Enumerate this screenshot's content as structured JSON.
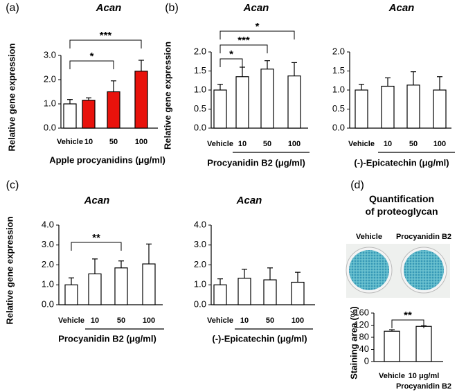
{
  "chart_data": [
    {
      "type": "bar",
      "panel": "(a)",
      "title": "Acan",
      "ylabel": "Relative gene expression",
      "xlabel": "Apple procyanidins (μg/ml)",
      "categories": [
        "Vehicle",
        "10",
        "50",
        "100"
      ],
      "values": [
        1.0,
        1.15,
        1.5,
        2.35
      ],
      "errors": [
        0.18,
        0.1,
        0.45,
        0.45
      ],
      "colors": [
        "#ffffff",
        "#e8120c",
        "#e8120c",
        "#e8120c"
      ],
      "ylim": [
        0,
        3
      ],
      "yticks": [
        {
          "value": 0,
          "label": "0.0"
        },
        {
          "value": 1,
          "label": "1.0"
        },
        {
          "value": 2,
          "label": "2.0"
        },
        {
          "value": 3,
          "label": "3.0"
        }
      ],
      "annotations": [
        "*",
        "***"
      ]
    },
    {
      "type": "bar",
      "panel": "(b)",
      "title": "Acan",
      "ylabel": "Relative gene expression",
      "xlabel": "Procyanidin B2 (μg/ml)",
      "categories": [
        "Vehicle",
        "10",
        "50",
        "100"
      ],
      "values": [
        1.0,
        1.35,
        1.55,
        1.37
      ],
      "errors": [
        0.15,
        0.25,
        0.22,
        0.35
      ],
      "colors": [
        "#ffffff",
        "#ffffff",
        "#ffffff",
        "#ffffff"
      ],
      "ylim": [
        0,
        2
      ],
      "yticks": [
        {
          "value": 0,
          "label": "0.0"
        },
        0.5,
        {
          "value": 1,
          "label": "1.0"
        },
        1.5,
        {
          "value": 2,
          "label": "2.0"
        }
      ],
      "annotations": [
        "*",
        "***",
        "*"
      ]
    },
    {
      "type": "bar",
      "title": "Acan",
      "xlabel": "(-)-Epicatechin (μg/ml)",
      "categories": [
        "Vehicle",
        "10",
        "50",
        "100"
      ],
      "values": [
        1.0,
        1.1,
        1.13,
        1.0
      ],
      "errors": [
        0.15,
        0.22,
        0.35,
        0.35
      ],
      "colors": [
        "#ffffff",
        "#ffffff",
        "#ffffff",
        "#ffffff"
      ],
      "ylim": [
        0,
        2
      ],
      "yticks": [
        {
          "value": 0,
          "label": "0.0"
        },
        0.5,
        {
          "value": 1,
          "label": "1.0"
        },
        1.5,
        {
          "value": 2,
          "label": "2.0"
        }
      ]
    },
    {
      "type": "bar",
      "panel": "(c)",
      "title": "Acan",
      "ylabel": "Relative gene expression",
      "xlabel": "Procyanidin B2 (μg/ml)",
      "categories": [
        "Vehicle",
        "10",
        "50",
        "100"
      ],
      "values": [
        1.0,
        1.55,
        1.85,
        2.05
      ],
      "errors": [
        0.35,
        0.75,
        0.35,
        1.0
      ],
      "colors": [
        "#ffffff",
        "#ffffff",
        "#ffffff",
        "#ffffff"
      ],
      "ylim": [
        0,
        4
      ],
      "yticks": [
        {
          "value": 0,
          "label": "0.0"
        },
        {
          "value": 1,
          "label": "1.0"
        },
        {
          "value": 2,
          "label": "2.0"
        },
        {
          "value": 3,
          "label": "3.0"
        },
        {
          "value": 4,
          "label": "4.0"
        }
      ],
      "annotations": [
        "**"
      ]
    },
    {
      "type": "bar",
      "title": "Acan",
      "xlabel": "(-)-Epicatechin (μg/ml)",
      "categories": [
        "Vehicle",
        "10",
        "50",
        "100"
      ],
      "values": [
        1.0,
        1.33,
        1.25,
        1.13
      ],
      "errors": [
        0.3,
        0.45,
        0.6,
        0.5
      ],
      "colors": [
        "#ffffff",
        "#ffffff",
        "#ffffff",
        "#ffffff"
      ],
      "ylim": [
        0,
        4
      ],
      "yticks": [
        {
          "value": 0,
          "label": "0.0"
        },
        {
          "value": 1,
          "label": "1.0"
        },
        {
          "value": 2,
          "label": "2.0"
        },
        {
          "value": 3,
          "label": "3.0"
        },
        {
          "value": 4,
          "label": "4.0"
        }
      ]
    },
    {
      "type": "bar",
      "panel": "(d)",
      "title": "Quantification of proteoglycan",
      "image_labels": [
        "Vehicle",
        "Procyanidin B2"
      ],
      "ylabel": "Staining area (%)",
      "categories": [
        "Vehicle",
        "10 μg/ml Procyanidin B2"
      ],
      "values": [
        100,
        116
      ],
      "errors": [
        5,
        2
      ],
      "colors": [
        "#ffffff",
        "#ffffff"
      ],
      "ylim": [
        0,
        160
      ],
      "yticks": [
        0,
        40,
        80,
        120,
        160
      ],
      "annotations": [
        "**"
      ]
    }
  ]
}
